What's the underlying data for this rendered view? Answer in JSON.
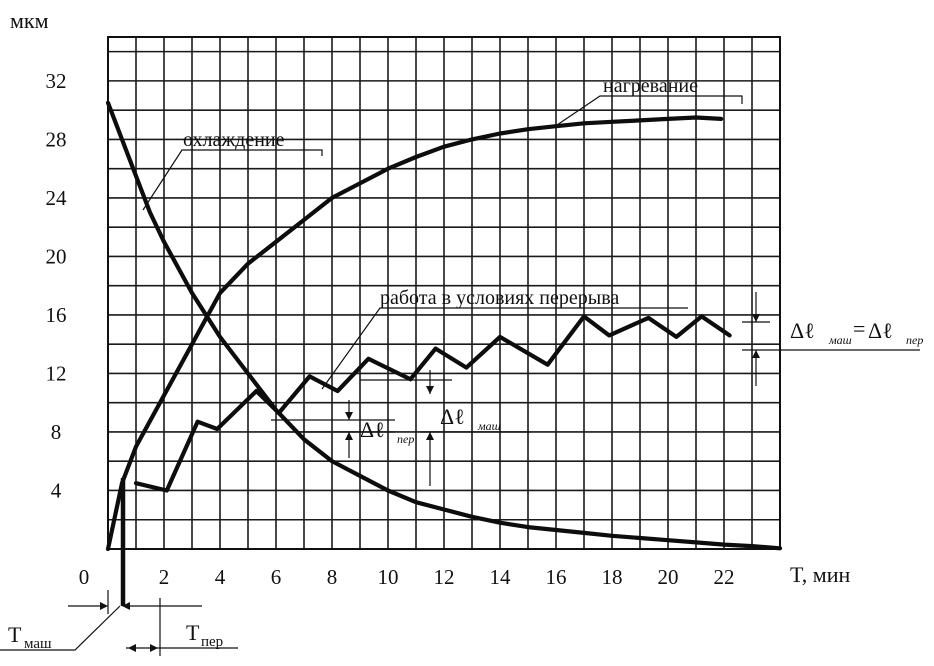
{
  "chart_data": {
    "type": "line",
    "xlabel": "T, мин",
    "ylabel": "мкм",
    "xlim": [
      0,
      24
    ],
    "ylim": [
      0,
      35
    ],
    "x_ticks": [
      0,
      2,
      4,
      6,
      8,
      10,
      12,
      14,
      16,
      18,
      20,
      22
    ],
    "y_ticks": [
      4,
      8,
      12,
      16,
      20,
      24,
      28,
      32
    ],
    "grid": true,
    "series": [
      {
        "name": "нагревание",
        "x": [
          0,
          0.5,
          1,
          2,
          3,
          4,
          5,
          6,
          7,
          8,
          9,
          10,
          11,
          12,
          13,
          14,
          15,
          16,
          17,
          18,
          19,
          20,
          21,
          21.9
        ],
        "y": [
          0,
          4.5,
          7,
          10.5,
          14,
          17.5,
          19.5,
          21,
          22.5,
          24,
          25,
          26,
          26.8,
          27.5,
          28,
          28.4,
          28.7,
          28.9,
          29.1,
          29.2,
          29.3,
          29.4,
          29.5,
          29.4
        ]
      },
      {
        "name": "охлаждение",
        "x": [
          0,
          0.5,
          1,
          1.5,
          2,
          3,
          4,
          5,
          6,
          7,
          8,
          9,
          10,
          11,
          12,
          13,
          14,
          15,
          16,
          17,
          18,
          19,
          20,
          21,
          22,
          23,
          24
        ],
        "y": [
          30.5,
          28,
          25.5,
          23,
          21,
          17.5,
          14.5,
          12,
          9.5,
          7.5,
          6,
          5,
          4,
          3.2,
          2.7,
          2.2,
          1.8,
          1.5,
          1.3,
          1.1,
          0.9,
          0.75,
          0.6,
          0.45,
          0.3,
          0.2,
          0.05
        ]
      },
      {
        "name": "работа в условиях перерыва",
        "x": [
          1,
          2.1,
          3.2,
          3.9,
          5.3,
          6.1,
          7.2,
          8.2,
          9.3,
          10.8,
          11.7,
          12.8,
          14,
          15.7,
          17,
          17.9,
          19.3,
          20.3,
          21.2,
          22.2
        ],
        "y": [
          4.5,
          4,
          8.7,
          8.2,
          10.8,
          9.3,
          11.8,
          10.8,
          13,
          11.6,
          13.7,
          12.4,
          14.5,
          12.6,
          15.9,
          14.6,
          15.8,
          14.5,
          15.9,
          14.6
        ]
      }
    ],
    "annotations": {
      "heating_label": "нагревание",
      "cooling_label": "охлаждение",
      "work_label": "работа в условиях перерыва",
      "delta_symbol": "Δℓ",
      "eq_sign": "=",
      "sub_per": "пер",
      "sub_mash": "маш",
      "t_mash": "T",
      "t_mash_sub": "маш",
      "t_per": "T",
      "t_per_sub": "пер"
    }
  }
}
